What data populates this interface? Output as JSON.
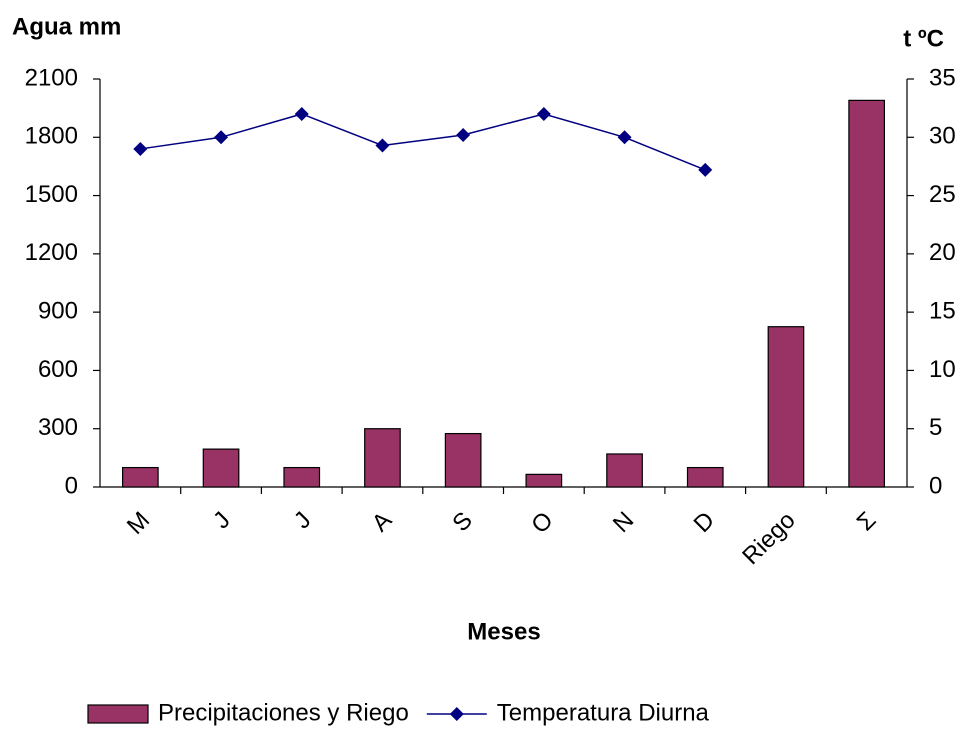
{
  "chart_data": {
    "type": "bar",
    "y_label": "Agua mm",
    "y2_label": "t ºC",
    "x_label": "Meses",
    "categories": [
      "M",
      "J",
      "J",
      "A",
      "S",
      "O",
      "N",
      "D",
      "Riego",
      "Σ"
    ],
    "series": [
      {
        "name": "Precipitaciones y Riego",
        "type": "bar",
        "color": "#993366",
        "values": [
          100,
          195,
          100,
          300,
          275,
          65,
          170,
          100,
          825,
          1990
        ]
      },
      {
        "name": "Temperatura Diurna",
        "type": "line",
        "axis": "y2",
        "color": "#000080",
        "values": [
          29,
          30,
          32,
          29.3,
          30.2,
          32,
          30,
          27.2,
          null,
          null
        ]
      }
    ],
    "ylim": [
      0,
      2100
    ],
    "yticks": [
      0,
      300,
      600,
      900,
      1200,
      1500,
      1800,
      2100
    ],
    "y2lim": [
      0,
      35
    ],
    "y2ticks": [
      0,
      5,
      10,
      15,
      20,
      25,
      30,
      35
    ],
    "grid": false
  }
}
